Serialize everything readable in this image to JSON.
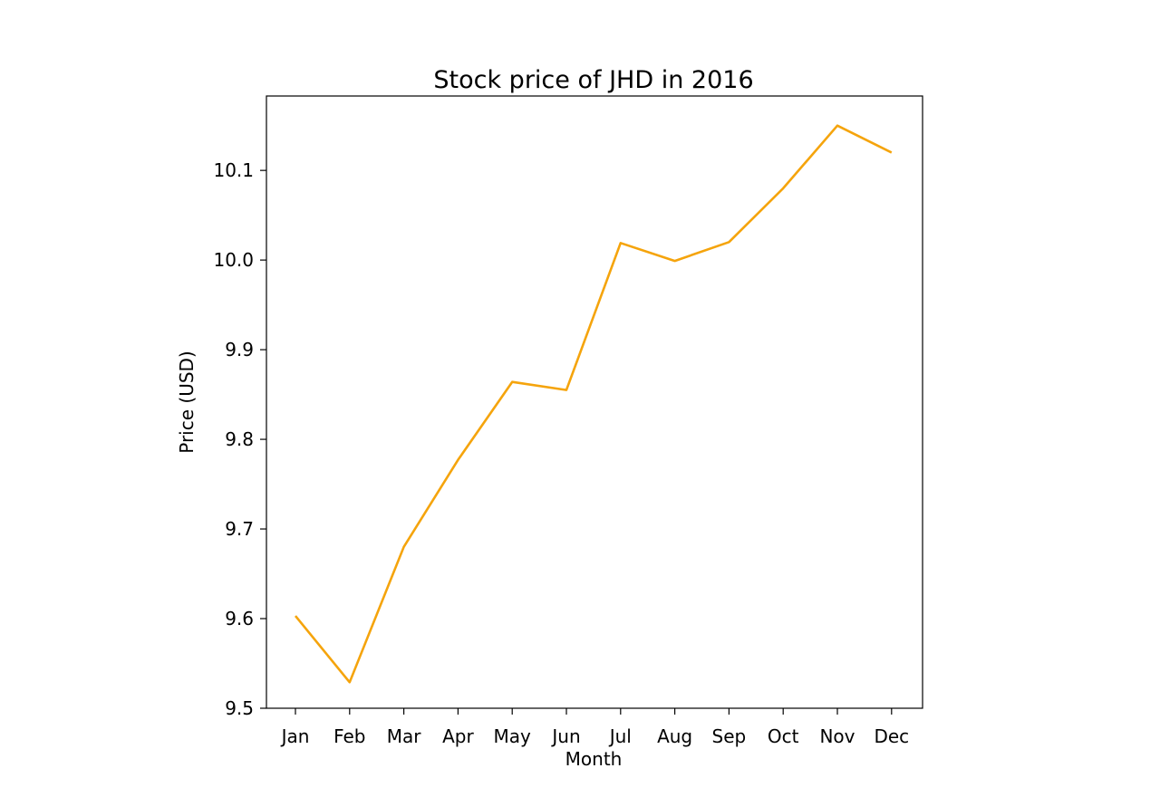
{
  "chart_data": {
    "type": "line",
    "title": "Stock price of JHD in 2016",
    "xlabel": "Month",
    "ylabel": "Price (USD)",
    "categories": [
      "Jan",
      "Feb",
      "Mar",
      "Apr",
      "May",
      "Jun",
      "Jul",
      "Aug",
      "Sep",
      "Oct",
      "Nov",
      "Dec"
    ],
    "series": [
      {
        "values": [
          9.603,
          9.529,
          9.68,
          9.777,
          9.864,
          9.855,
          10.019,
          9.999,
          10.02,
          10.08,
          10.15,
          10.12
        ]
      }
    ],
    "ylim": [
      9.5,
      10.183
    ],
    "yticks": [
      "9.5",
      "9.6",
      "9.7",
      "9.8",
      "9.9",
      "10.0",
      "10.1"
    ],
    "grid": false,
    "legend": "none",
    "line_color": "#f5a40c"
  }
}
